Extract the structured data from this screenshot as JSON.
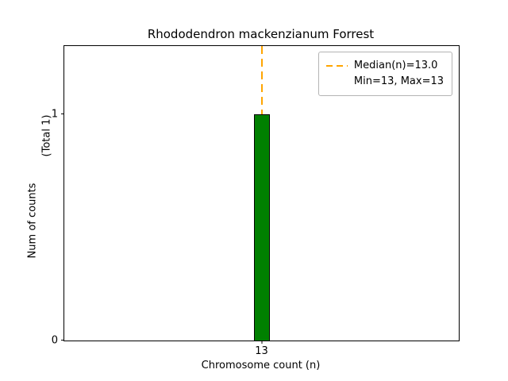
{
  "chart_data": {
    "type": "bar",
    "title": "Rhododendron mackenzianum Forrest",
    "xlabel": "Chromosome count (n)",
    "ylabel": "Num of counts",
    "ylabel_secondary": "(Total 1)",
    "categories": [
      13
    ],
    "values": [
      1
    ],
    "x_tick_labels": [
      "13"
    ],
    "y_tick_labels": [
      "0",
      "1"
    ],
    "y_tick_values": [
      0,
      1
    ],
    "ylim": [
      0,
      1.3
    ],
    "grid": false,
    "bar_color": "#008000",
    "bar_edge_color": "#000000",
    "median_line": {
      "x": 13,
      "color": "#ffa500",
      "style": "dashed"
    },
    "legend_position": "upper right",
    "legend": {
      "line1": "Median(n)=13.0",
      "line2": "Min=13, Max=13",
      "sample_color": "#ffa500"
    }
  }
}
